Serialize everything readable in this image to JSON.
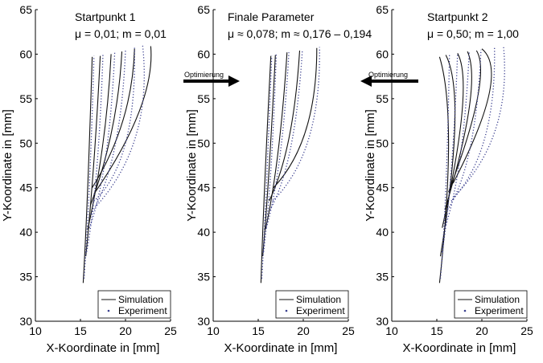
{
  "figure": {
    "arrow_left_label": "Optimierung",
    "arrow_right_label": "Optimierung"
  },
  "chart_data": [
    {
      "type": "line",
      "title_line1": "Startpunkt 1",
      "title_line2": "μ = 0,01; m = 0,01",
      "xlabel": "X-Koordinate in [mm]",
      "ylabel": "Y-Koordinate in [mm]",
      "xlim": [
        10,
        25
      ],
      "ylim": [
        30,
        65
      ],
      "xticks": [
        10,
        15,
        20,
        25
      ],
      "yticks": [
        30,
        35,
        40,
        45,
        50,
        55,
        60,
        65
      ],
      "legend": [
        "Simulation",
        "Experiment"
      ],
      "series": [
        {
          "name": "Simulation",
          "curves": [
            [
              [
                15.3,
                34.3
              ],
              [
                15.8,
                45.0
              ],
              [
                16.3,
                59.7
              ]
            ],
            [
              [
                15.6,
                37.3
              ],
              [
                16.5,
                48.0
              ],
              [
                17.2,
                59.8
              ]
            ],
            [
              [
                15.8,
                40.3
              ],
              [
                17.5,
                50.0
              ],
              [
                18.4,
                60.0
              ]
            ],
            [
              [
                16.1,
                43.0
              ],
              [
                18.5,
                51.5
              ],
              [
                19.6,
                60.3
              ]
            ],
            [
              [
                16.3,
                45.0
              ],
              [
                19.7,
                52.5
              ],
              [
                21.0,
                60.6
              ]
            ],
            [
              [
                16.5,
                44.3
              ],
              [
                21.5,
                53.5
              ],
              [
                22.8,
                60.9
              ]
            ]
          ]
        },
        {
          "name": "Experiment",
          "curves": [
            [
              [
                15.4,
                34.8
              ],
              [
                16.0,
                45.5
              ],
              [
                16.5,
                59.8
              ]
            ],
            [
              [
                15.7,
                37.8
              ],
              [
                16.8,
                47.0
              ],
              [
                17.5,
                60.0
              ]
            ],
            [
              [
                16.0,
                40.5
              ],
              [
                17.8,
                48.5
              ],
              [
                18.8,
                60.2
              ]
            ],
            [
              [
                16.2,
                42.0
              ],
              [
                18.8,
                49.5
              ],
              [
                20.0,
                60.5
              ]
            ],
            [
              [
                16.5,
                43.5
              ],
              [
                20.0,
                50.0
              ],
              [
                21.0,
                60.8
              ]
            ],
            [
              [
                16.8,
                43.0
              ],
              [
                21.2,
                51.0
              ],
              [
                21.9,
                61.0
              ]
            ]
          ]
        }
      ]
    },
    {
      "type": "line",
      "title_line1": "Finale Parameter",
      "title_line2": "μ ≈ 0,078; m ≈ 0,176 – 0,194",
      "xlabel": "X-Koordinate in [mm]",
      "ylabel": "Y-Koordinate in [mm]",
      "xlim": [
        10,
        25
      ],
      "ylim": [
        30,
        65
      ],
      "xticks": [
        10,
        15,
        20,
        25
      ],
      "yticks": [
        30,
        35,
        40,
        45,
        50,
        55,
        60,
        65
      ],
      "legend": [
        "Simulation",
        "Experiment"
      ],
      "series": [
        {
          "name": "Simulation",
          "curves": [
            [
              [
                15.3,
                34.3
              ],
              [
                15.7,
                45.0
              ],
              [
                16.4,
                59.8
              ]
            ],
            [
              [
                15.5,
                37.3
              ],
              [
                16.2,
                47.0
              ],
              [
                16.9,
                59.9
              ]
            ],
            [
              [
                15.8,
                40.3
              ],
              [
                17.2,
                49.0
              ],
              [
                18.2,
                60.2
              ]
            ],
            [
              [
                16.2,
                43.5
              ],
              [
                18.4,
                50.5
              ],
              [
                19.6,
                60.4
              ]
            ],
            [
              [
                16.7,
                45.0
              ],
              [
                20.3,
                51.5
              ],
              [
                21.5,
                60.7
              ]
            ]
          ]
        },
        {
          "name": "Experiment",
          "curves": [
            [
              [
                15.4,
                34.8
              ],
              [
                15.9,
                45.0
              ],
              [
                16.5,
                59.8
              ]
            ],
            [
              [
                15.6,
                37.8
              ],
              [
                16.4,
                47.0
              ],
              [
                17.0,
                60.0
              ]
            ],
            [
              [
                15.9,
                40.5
              ],
              [
                17.4,
                48.5
              ],
              [
                18.4,
                60.2
              ]
            ],
            [
              [
                16.3,
                42.5
              ],
              [
                18.6,
                49.5
              ],
              [
                19.9,
                60.5
              ]
            ],
            [
              [
                16.6,
                43.5
              ],
              [
                20.6,
                50.5
              ],
              [
                21.8,
                60.8
              ]
            ]
          ]
        }
      ]
    },
    {
      "type": "line",
      "title_line1": "Startpunkt 2",
      "title_line2": "μ = 0,50; m = 1,00",
      "xlabel": "X-Koordinate in [mm]",
      "ylabel": "Y-Koordinate in [mm]",
      "xlim": [
        10,
        25
      ],
      "ylim": [
        30,
        65
      ],
      "xticks": [
        10,
        15,
        20,
        25
      ],
      "yticks": [
        30,
        35,
        40,
        45,
        50,
        55,
        60,
        65
      ],
      "legend": [
        "Simulation",
        "Experiment"
      ],
      "series": [
        {
          "name": "Simulation",
          "curves": [
            [
              [
                15.3,
                34.3
              ],
              [
                16.3,
                50.0
              ],
              [
                15.3,
                59.7
              ]
            ],
            [
              [
                15.4,
                37.3
              ],
              [
                17.0,
                52.0
              ],
              [
                16.0,
                59.9
              ]
            ],
            [
              [
                15.6,
                40.5
              ],
              [
                17.8,
                53.5
              ],
              [
                17.3,
                60.1
              ]
            ],
            [
              [
                15.9,
                42.5
              ],
              [
                18.6,
                54.0
              ],
              [
                18.4,
                60.3
              ]
            ],
            [
              [
                16.3,
                44.5
              ],
              [
                19.5,
                55.0
              ],
              [
                19.4,
                60.4
              ]
            ],
            [
              [
                16.8,
                45.5
              ],
              [
                20.8,
                55.5
              ],
              [
                20.0,
                60.6
              ]
            ]
          ]
        },
        {
          "name": "Experiment",
          "curves": [
            [
              [
                15.4,
                34.8
              ],
              [
                16.0,
                45.0
              ],
              [
                16.4,
                59.9
              ]
            ],
            [
              [
                15.6,
                37.8
              ],
              [
                16.6,
                47.0
              ],
              [
                17.3,
                60.1
              ]
            ],
            [
              [
                15.9,
                40.5
              ],
              [
                17.6,
                48.5
              ],
              [
                18.6,
                60.3
              ]
            ],
            [
              [
                16.2,
                42.5
              ],
              [
                18.7,
                49.5
              ],
              [
                19.9,
                60.5
              ]
            ],
            [
              [
                16.6,
                43.5
              ],
              [
                20.3,
                50.5
              ],
              [
                21.4,
                60.7
              ]
            ],
            [
              [
                16.9,
                44.0
              ],
              [
                21.5,
                51.5
              ],
              [
                22.4,
                60.9
              ]
            ]
          ]
        }
      ]
    }
  ]
}
